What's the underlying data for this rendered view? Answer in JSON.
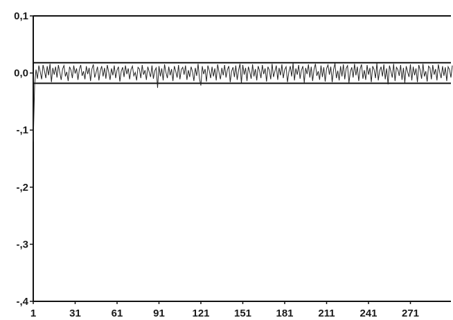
{
  "chart_data": {
    "type": "line",
    "title": "",
    "xlabel": "",
    "ylabel": "",
    "xlim": [
      1,
      300
    ],
    "ylim": [
      -0.4,
      0.1
    ],
    "grid": false,
    "legend": "none",
    "x_tick_values": [
      1,
      31,
      61,
      91,
      121,
      151,
      181,
      211,
      241,
      271
    ],
    "x_tick_labels": [
      "1",
      "31",
      "61",
      "91",
      "121",
      "151",
      "181",
      "211",
      "241",
      "271"
    ],
    "y_tick_values": [
      0.1,
      0.0,
      -0.1,
      -0.2,
      -0.3,
      -0.4
    ],
    "y_tick_labels": [
      "0,1",
      "0,0",
      "-,1",
      "-,2",
      "-,3",
      "-,4"
    ],
    "confidence_band": [
      -0.018,
      0.018
    ],
    "series": [
      {
        "values": [
          -0.12,
          -0.02,
          0.006,
          -0.01,
          0.013,
          0.002,
          -0.011,
          0.014,
          0.004,
          -0.009,
          0.012,
          -0.004,
          0.016,
          -0.016,
          0.009,
          -0.003,
          0.011,
          -0.008,
          0.014,
          0.001,
          -0.012,
          0.007,
          0.013,
          -0.006,
          0.002,
          -0.014,
          0.011,
          0.005,
          -0.009,
          0.013,
          -0.001,
          0.008,
          -0.012,
          0.006,
          0.014,
          -0.005,
          0.003,
          -0.011,
          0.012,
          -0.002,
          0.009,
          -0.014,
          0.007,
          0.015,
          -0.008,
          0.001,
          0.011,
          -0.013,
          0.004,
          0.012,
          -0.006,
          0.009,
          -0.01,
          0.014,
          0.002,
          -0.012,
          0.008,
          -0.004,
          0.013,
          -0.009,
          0.005,
          0.011,
          -0.015,
          0.003,
          0.01,
          -0.007,
          0.013,
          -0.002,
          0.008,
          -0.011,
          0.006,
          0.012,
          -0.005,
          0.001,
          -0.013,
          0.01,
          0.007,
          -0.009,
          0.014,
          -0.003,
          0.005,
          -0.012,
          0.011,
          0.002,
          -0.007,
          0.013,
          -0.01,
          0.004,
          0.009,
          -0.026,
          0.012,
          -0.006,
          0.008,
          -0.013,
          0.015,
          0.001,
          -0.009,
          0.011,
          -0.004,
          0.007,
          -0.014,
          0.012,
          0.003,
          -0.008,
          0.014,
          -0.011,
          0.006,
          0.01,
          -0.003,
          0.013,
          -0.012,
          0.005,
          -0.007,
          0.011,
          0.002,
          -0.014,
          0.009,
          -0.005,
          0.016,
          -0.01,
          -0.022,
          0.012,
          -0.002,
          0.007,
          -0.015,
          0.013,
          0.004,
          -0.009,
          0.011,
          -0.006,
          0.008,
          -0.013,
          0.015,
          0.001,
          -0.011,
          0.009,
          -0.004,
          0.014,
          -0.008,
          0.006,
          0.012,
          -0.016,
          0.003,
          0.01,
          -0.007,
          0.013,
          -0.012,
          0.005,
          0.016,
          -0.018,
          0.014,
          -0.003,
          0.009,
          -0.014,
          0.011,
          0.002,
          -0.01,
          0.015,
          -0.006,
          0.007,
          -0.013,
          0.012,
          0.004,
          -0.009,
          0.014,
          -0.002,
          0.008,
          -0.015,
          0.011,
          0.005,
          -0.011,
          0.016,
          -0.007,
          0.003,
          0.013,
          -0.012,
          0.009,
          -0.004,
          0.015,
          -0.009,
          0.006,
          0.011,
          -0.016,
          0.002,
          0.012,
          -0.006,
          0.017,
          -0.013,
          0.008,
          -0.003,
          0.014,
          -0.01,
          0.005,
          0.012,
          -0.017,
          0.009,
          -0.002,
          0.015,
          -0.008,
          0.011,
          -0.014,
          0.006,
          0.016,
          -0.005,
          0.003,
          -0.012,
          0.013,
          -0.007,
          0.01,
          -0.015,
          0.008,
          0.014,
          -0.003,
          0.011,
          -0.016,
          0.006,
          0.017,
          -0.009,
          0.004,
          -0.013,
          0.012,
          -0.006,
          0.015,
          -0.011,
          0.008,
          0.013,
          -0.017,
          0.002,
          0.01,
          -0.008,
          0.016,
          -0.004,
          0.011,
          -0.014,
          0.007,
          0.015,
          -0.01,
          0.005,
          -0.012,
          0.014,
          -0.003,
          0.009,
          -0.016,
          0.012,
          0.006,
          -0.009,
          0.017,
          -0.013,
          0.004,
          0.011,
          -0.006,
          0.015,
          -0.011,
          0.008,
          -0.02,
          0.013,
          0.003,
          -0.008,
          0.016,
          -0.014,
          0.01,
          0.006,
          -0.005,
          0.014,
          -0.012,
          0.009,
          -0.017,
          0.012,
          0.002,
          -0.007,
          0.015,
          -0.013,
          0.011,
          -0.004,
          0.008,
          -0.016,
          0.014,
          0.005,
          -0.01,
          0.016,
          -0.006,
          0.003,
          -0.015,
          0.012,
          0.009,
          -0.011,
          0.014,
          -0.003,
          0.007,
          -0.013,
          0.015,
          0.001,
          -0.009,
          0.012,
          -0.005,
          0.01,
          -0.014,
          0.011,
          0.006,
          -0.008,
          0.013
        ]
      }
    ]
  }
}
